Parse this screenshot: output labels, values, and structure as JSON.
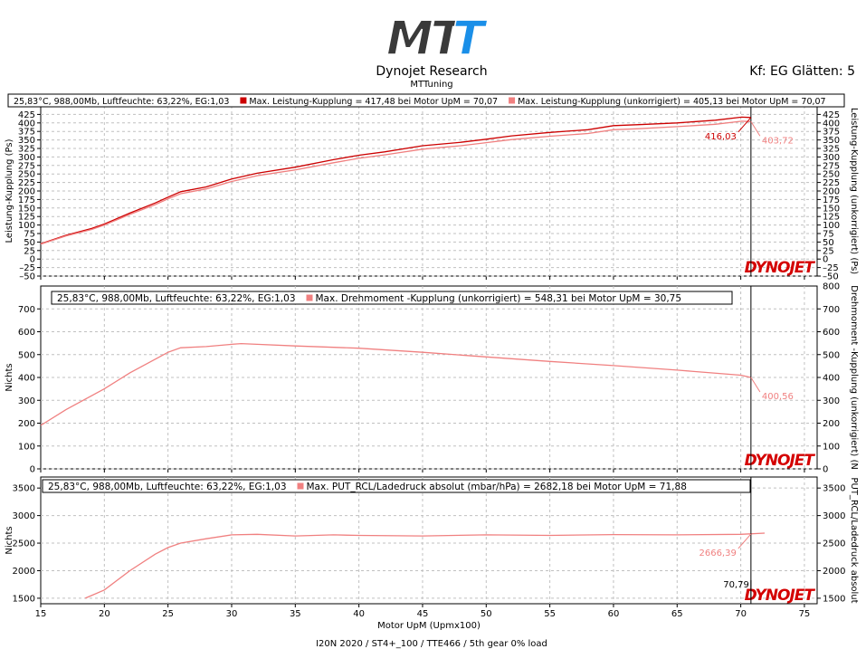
{
  "header": {
    "logo_text": "MTT",
    "title": "Dynojet Research",
    "subtitle": "MTTuning",
    "smoothing": "Kf: EG Glätten: 5",
    "footer": "I20N 2020 / ST4+_100 / TTE466 / 5th gear 0% load"
  },
  "colors": {
    "series_dark": "#cc0000",
    "series_light": "#f08080",
    "grid": "#c0c0c0",
    "cursor": "#000000",
    "watermark_red": "#d40000",
    "logo_blue": "#1a8fe8",
    "logo_gray": "#3a3a3a"
  },
  "watermark": "DYNOJET",
  "chart_data": [
    {
      "type": "line",
      "name": "power",
      "legend": [
        {
          "text": "25,83°C, 988,00Mb, Luftfeuchte: 63,22%, EG:1,03",
          "marker": false
        },
        {
          "text": "Max. Leistung-Kupplung = 417,48 bei Motor UpM = 70,07",
          "marker": "series_dark"
        },
        {
          "text": "Max. Leistung-Kupplung (unkorrigiert) = 405,13 bei Motor UpM = 70,07",
          "marker": "series_light"
        }
      ],
      "ylabel": "Leistung-Kupplung (Ps)",
      "ylabel_right": "Leistung-Kupplung (unkorrigiert) (Ps)",
      "ylim": [
        -50,
        450
      ],
      "yticks": [
        -50,
        -25,
        0,
        25,
        50,
        75,
        100,
        125,
        150,
        175,
        200,
        225,
        250,
        275,
        300,
        325,
        350,
        375,
        400,
        425
      ],
      "ytick_labels": [
        "–50",
        "–25",
        "0",
        "25",
        "50",
        "75",
        "100",
        "125",
        "150",
        "175",
        "200",
        "225",
        "250",
        "275",
        "300",
        "325",
        "350",
        "375",
        "400",
        "425"
      ],
      "xlim": [
        15,
        76
      ],
      "series": [
        {
          "name": "Leistung-Kupplung",
          "color": "series_dark",
          "x": [
            15,
            17,
            19,
            20,
            22,
            24,
            25,
            26,
            28,
            30,
            32,
            35,
            38,
            40,
            42,
            45,
            48,
            50,
            52,
            55,
            58,
            60,
            62,
            65,
            68,
            70.07,
            70.8
          ],
          "y": [
            45,
            70,
            90,
            103,
            135,
            165,
            182,
            198,
            212,
            235,
            252,
            270,
            292,
            305,
            315,
            333,
            343,
            352,
            362,
            372,
            380,
            392,
            395,
            400,
            408,
            417,
            416
          ]
        },
        {
          "name": "Leistung-Kupplung (unkorrigiert)",
          "color": "series_light",
          "x": [
            15,
            17,
            19,
            20,
            22,
            24,
            25,
            26,
            28,
            30,
            32,
            35,
            38,
            40,
            42,
            45,
            48,
            50,
            52,
            55,
            58,
            60,
            62,
            65,
            68,
            70.07,
            70.8
          ],
          "y": [
            44,
            68,
            87,
            100,
            131,
            160,
            177,
            192,
            206,
            228,
            245,
            262,
            283,
            296,
            306,
            323,
            333,
            342,
            351,
            361,
            369,
            380,
            383,
            389,
            396,
            405,
            404
          ]
        }
      ],
      "annotations": [
        {
          "text": "416,03",
          "color": "series_dark",
          "x": 70.8,
          "y": 416
        },
        {
          "text": "403,72",
          "color": "series_light",
          "x": 70.8,
          "y": 404
        }
      ]
    },
    {
      "type": "line",
      "name": "torque",
      "legend": [
        {
          "text": "25,83°C, 988,00Mb, Luftfeuchte: 63,22%, EG:1,03",
          "marker": false
        },
        {
          "text": "Max. Drehmoment -Kupplung (unkorrigiert) = 548,31 bei Motor UpM = 30,75",
          "marker": "series_light"
        }
      ],
      "ylabel": "Nichts",
      "ylabel_right": "Drehmoment -Kupplung (unkorrigiert) (N",
      "ylim": [
        0,
        800
      ],
      "yticks": [
        0,
        100,
        200,
        300,
        400,
        500,
        600,
        700
      ],
      "ytick_labels": [
        "0",
        "100",
        "200",
        "300",
        "400",
        "500",
        "600",
        "700"
      ],
      "yticks_right": [
        0,
        100,
        200,
        300,
        400,
        500,
        600,
        700,
        800
      ],
      "ytick_labels_right": [
        "0",
        "100",
        "200",
        "300",
        "400",
        "500",
        "600",
        "700",
        "800"
      ],
      "xlim": [
        15,
        76
      ],
      "series": [
        {
          "name": "Drehmoment -Kupplung (unkorrigiert)",
          "color": "series_light",
          "x": [
            15,
            17,
            20,
            22,
            24,
            25,
            26,
            28,
            30,
            30.75,
            32,
            35,
            38,
            40,
            45,
            50,
            55,
            60,
            65,
            70,
            70.8
          ],
          "y": [
            190,
            260,
            350,
            420,
            480,
            510,
            530,
            535,
            545,
            548,
            545,
            538,
            532,
            528,
            510,
            490,
            470,
            452,
            432,
            410,
            400
          ]
        }
      ],
      "annotations": [
        {
          "text": "400,56",
          "color": "series_light",
          "x": 70.8,
          "y": 400
        }
      ]
    },
    {
      "type": "line",
      "name": "boost",
      "legend": [
        {
          "text": "25,83°C, 988,00Mb, Luftfeuchte: 63,22%, EG:1,03",
          "marker": false
        },
        {
          "text": "Max. PUT_RCL/Ladedruck absolut (mbar/hPa)  = 2682,18 bei Motor UpM = 71,88",
          "marker": "series_light"
        }
      ],
      "ylabel": "Nichts",
      "ylabel_right": "PUT_RCL/Ladedruck absolut",
      "ylim": [
        1400,
        3700
      ],
      "yticks": [
        1500,
        2000,
        2500,
        3000,
        3500
      ],
      "ytick_labels": [
        "1500",
        "2000",
        "2500",
        "3000",
        "3500"
      ],
      "xlim": [
        15,
        76
      ],
      "xticks": [
        15,
        20,
        25,
        30,
        35,
        40,
        45,
        50,
        55,
        60,
        65,
        70,
        75
      ],
      "xtick_labels": [
        "15",
        "20",
        "25",
        "30",
        "35",
        "40",
        "45",
        "50",
        "55",
        "60",
        "65",
        "70",
        "75"
      ],
      "xlabel": "Motor UpM (Upmx100)",
      "series": [
        {
          "name": "PUT_RCL/Ladedruck absolut",
          "color": "series_light",
          "x": [
            18.5,
            20,
            22,
            24,
            25,
            26,
            28,
            30,
            32,
            35,
            38,
            40,
            45,
            50,
            55,
            60,
            65,
            70,
            71.88
          ],
          "y": [
            1500,
            1650,
            2000,
            2300,
            2420,
            2500,
            2580,
            2650,
            2660,
            2630,
            2650,
            2640,
            2630,
            2650,
            2640,
            2655,
            2650,
            2660,
            2682
          ]
        }
      ],
      "annotations": [
        {
          "text": "2666,39",
          "color": "series_light",
          "x": 70.8,
          "y": 2666
        },
        {
          "text": "70,79",
          "color": "cursor",
          "x": 70.8,
          "y": 1500
        }
      ]
    }
  ],
  "cursor_x": 70.8
}
